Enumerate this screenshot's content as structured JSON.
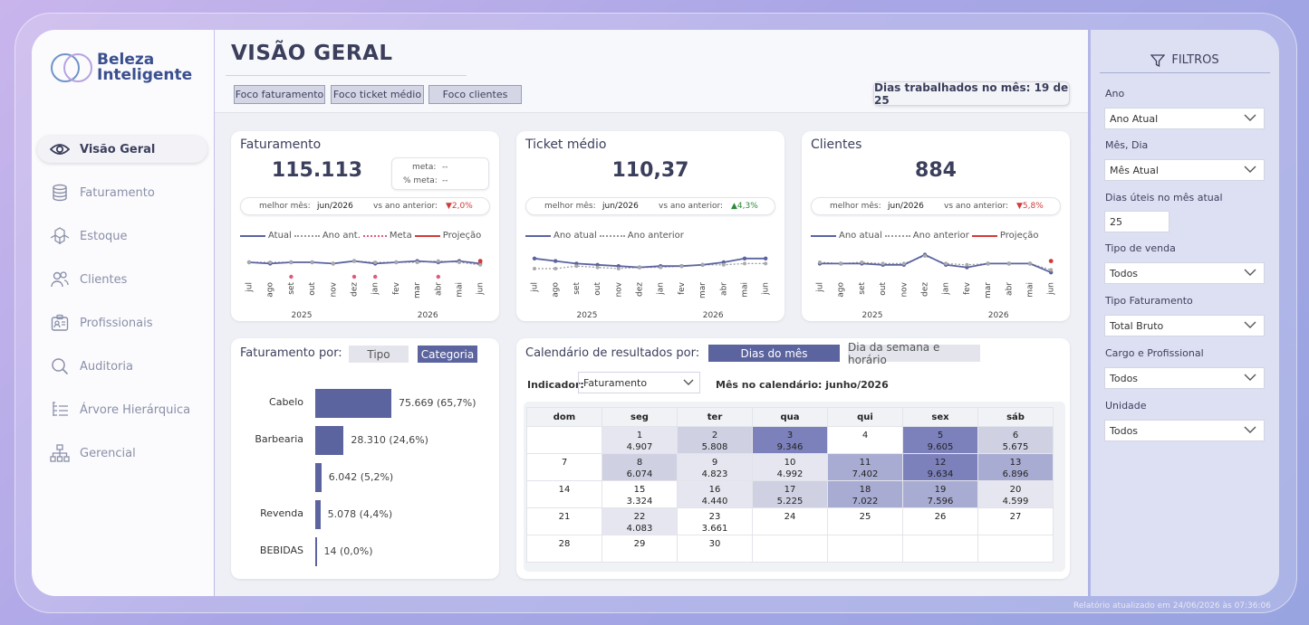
{
  "brand": {
    "line1": "Beleza",
    "line2": "Inteligente"
  },
  "nav": [
    {
      "label": "Visão Geral",
      "icon": "eye-icon"
    },
    {
      "label": "Faturamento",
      "icon": "coins-icon"
    },
    {
      "label": "Estoque",
      "icon": "boxes-icon"
    },
    {
      "label": "Clientes",
      "icon": "users-icon"
    },
    {
      "label": "Profissionais",
      "icon": "badge-icon"
    },
    {
      "label": "Auditoria",
      "icon": "search-icon"
    },
    {
      "label": "Árvore Hierárquica",
      "icon": "tree-list-icon"
    },
    {
      "label": "Gerencial",
      "icon": "org-chart-icon"
    }
  ],
  "header": {
    "title": "VISÃO GERAL",
    "focus": [
      "Foco faturamento",
      "Foco ticket médio",
      "Foco clientes"
    ],
    "dias": "Dias trabalhados no mês: 19 de 25"
  },
  "kpis": [
    {
      "title": "Faturamento",
      "value": "115.113",
      "meta_label": "meta:",
      "meta_value": "--",
      "pmeta_label": "% meta:",
      "pmeta_value": "--",
      "melhor_label": "melhor mês:",
      "melhor_value": "jun/2026",
      "vs_label": "vs ano anterior:",
      "vs_value": "▼2,0%",
      "vs_color": "#d23a3a",
      "legend": [
        "Atual",
        "Ano ant.",
        "Meta",
        "Projeção"
      ]
    },
    {
      "title": "Ticket médio",
      "value": "110,37",
      "melhor_label": "melhor mês:",
      "melhor_value": "jun/2026",
      "vs_label": "vs ano anterior:",
      "vs_value": "▲4,3%",
      "vs_color": "#2a8a3a",
      "legend": [
        "Ano atual",
        "Ano anterior"
      ]
    },
    {
      "title": "Clientes",
      "value": "884",
      "melhor_label": "melhor mês:",
      "melhor_value": "jun/2026",
      "vs_label": "vs ano anterior:",
      "vs_value": "▼5,8%",
      "vs_color": "#d23a3a",
      "legend": [
        "Ano atual",
        "Ano anterior",
        "Projeção"
      ]
    }
  ],
  "months": [
    "jul",
    "ago",
    "set",
    "out",
    "nov",
    "dez",
    "jan",
    "fev",
    "mar",
    "abr",
    "mai",
    "jun"
  ],
  "years": [
    "2025",
    "2026"
  ],
  "fat_por": {
    "label": "Faturamento por:",
    "tabs": [
      "Tipo",
      "Categoria"
    ]
  },
  "chart_data": {
    "type": "bar",
    "categories": [
      "Cabelo",
      "Barbearia",
      "",
      "Revenda",
      "BEBIDAS"
    ],
    "values": [
      75669,
      28310,
      6042,
      5078,
      14
    ],
    "labels": [
      "75.669 (65,7%)",
      "28.310 (24,6%)",
      "6.042 (5,2%)",
      "5.078 (4,4%)",
      "14 (0,0%)"
    ],
    "color": "#5b649e"
  },
  "calendar": {
    "title": "Calendário de resultados por:",
    "tabs": [
      "Dias do mês",
      "Dia da semana e horário"
    ],
    "indicador_label": "Indicador:",
    "indicador_value": "Faturamento",
    "mes_label": "Mês no calendário: junho/2026",
    "days": [
      "dom",
      "seg",
      "ter",
      "qua",
      "qui",
      "sex",
      "sáb"
    ],
    "weeks": [
      [
        [
          "",
          "",
          0
        ],
        [
          "1",
          "4.907",
          1
        ],
        [
          "2",
          "5.808",
          2
        ],
        [
          "3",
          "9.346",
          4
        ],
        [
          "4",
          "",
          0
        ],
        [
          "5",
          "9.605",
          4
        ],
        [
          "6",
          "5.675",
          2
        ]
      ],
      [
        [
          "7",
          "",
          0
        ],
        [
          "8",
          "6.074",
          2
        ],
        [
          "9",
          "4.823",
          1
        ],
        [
          "10",
          "4.992",
          1
        ],
        [
          "11",
          "7.402",
          3
        ],
        [
          "12",
          "9.634",
          4
        ],
        [
          "13",
          "6.896",
          3
        ]
      ],
      [
        [
          "14",
          "",
          0
        ],
        [
          "15",
          "3.324",
          0
        ],
        [
          "16",
          "4.440",
          1
        ],
        [
          "17",
          "5.225",
          2
        ],
        [
          "18",
          "7.022",
          3
        ],
        [
          "19",
          "7.596",
          3
        ],
        [
          "20",
          "4.599",
          1
        ]
      ],
      [
        [
          "21",
          "",
          0
        ],
        [
          "22",
          "4.083",
          1
        ],
        [
          "23",
          "3.661",
          0
        ],
        [
          "24",
          "",
          0
        ],
        [
          "25",
          "",
          0
        ],
        [
          "26",
          "",
          0
        ],
        [
          "27",
          "",
          0
        ]
      ],
      [
        [
          "28",
          "",
          0
        ],
        [
          "29",
          "",
          0
        ],
        [
          "30",
          "",
          0
        ],
        [
          "",
          "",
          0
        ],
        [
          "",
          "",
          0
        ],
        [
          "",
          "",
          0
        ],
        [
          "",
          "",
          0
        ]
      ]
    ]
  },
  "filters": {
    "title": "FILTROS",
    "items": [
      {
        "label": "Ano",
        "value": "Ano Atual"
      },
      {
        "label": "Mês, Dia",
        "value": "Mês Atual"
      },
      {
        "label": "Dias úteis no mês atual",
        "value": "25"
      },
      {
        "label": "Tipo de venda",
        "value": "Todos"
      },
      {
        "label": "Tipo Faturamento",
        "value": "Total Bruto"
      },
      {
        "label": "Cargo e Profissional",
        "value": "Todos"
      },
      {
        "label": "Unidade",
        "value": "Todos"
      }
    ]
  },
  "footer": "Relatório atualizado em 24/06/2026 às 07:36:06"
}
